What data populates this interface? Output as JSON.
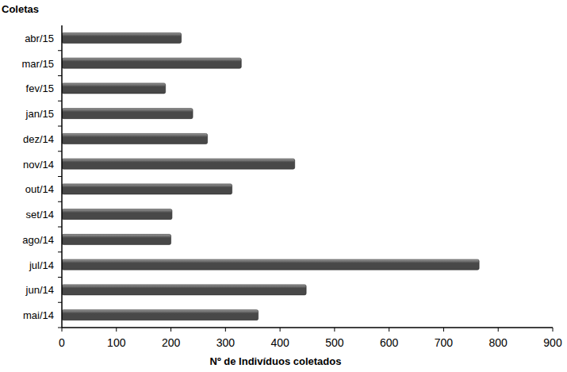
{
  "chart_data": {
    "type": "bar",
    "orientation": "horizontal",
    "y_label": "Coletas",
    "x_label": "Nº de Indivíduos coletados",
    "categories": [
      "mai/14",
      "jun/14",
      "jul/14",
      "ago/14",
      "set/14",
      "out/14",
      "nov/14",
      "dez/14",
      "jan/15",
      "fev/15",
      "mar/15",
      "abr/15"
    ],
    "values": [
      360,
      448,
      765,
      200,
      202,
      312,
      427,
      267,
      240,
      190,
      329,
      219
    ],
    "color": "#484848",
    "xlim": [
      0,
      900
    ],
    "xticks": [
      0,
      100,
      200,
      300,
      400,
      500,
      600,
      700,
      800,
      900
    ],
    "grid": false
  }
}
